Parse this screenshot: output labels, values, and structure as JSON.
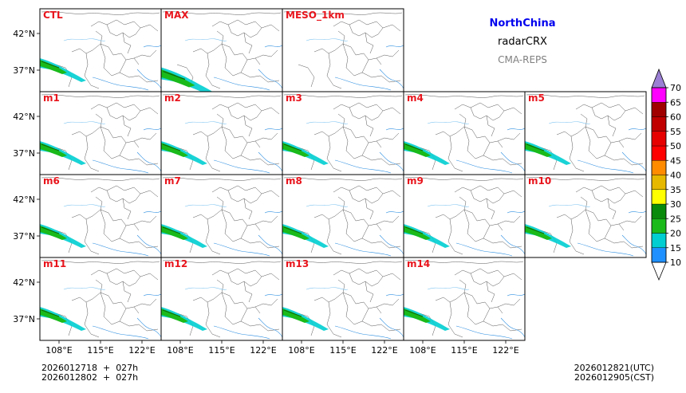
{
  "header": {
    "region": "NorthChina",
    "product": "radarCRX",
    "model": "CMA-REPS"
  },
  "footer": {
    "init_utc": "2026012718  +  027h",
    "init_cst": "2026012802  +  027h",
    "valid_utc": "2026012821(UTC)",
    "valid_cst": "2026012905(CST)"
  },
  "axes": {
    "lat_ticks": [
      "42°N",
      "37°N"
    ],
    "lon_ticks": [
      "108°E",
      "115°E",
      "122°E"
    ]
  },
  "panels": [
    {
      "label": "CTL",
      "row": 0,
      "col": 0
    },
    {
      "label": "MAX",
      "row": 0,
      "col": 1
    },
    {
      "label": "MESO_1km",
      "row": 0,
      "col": 2
    },
    {
      "label": "m1",
      "row": 1,
      "col": 0
    },
    {
      "label": "m2",
      "row": 1,
      "col": 1
    },
    {
      "label": "m3",
      "row": 1,
      "col": 2
    },
    {
      "label": "m4",
      "row": 1,
      "col": 3
    },
    {
      "label": "m5",
      "row": 1,
      "col": 4
    },
    {
      "label": "m6",
      "row": 2,
      "col": 0
    },
    {
      "label": "m7",
      "row": 2,
      "col": 1
    },
    {
      "label": "m8",
      "row": 2,
      "col": 2
    },
    {
      "label": "m9",
      "row": 2,
      "col": 3
    },
    {
      "label": "m10",
      "row": 2,
      "col": 4
    },
    {
      "label": "m11",
      "row": 3,
      "col": 0
    },
    {
      "label": "m12",
      "row": 3,
      "col": 1
    },
    {
      "label": "m13",
      "row": 3,
      "col": 2
    },
    {
      "label": "m14",
      "row": 3,
      "col": 3
    }
  ],
  "colorbar": {
    "levels": [
      "10",
      "15",
      "20",
      "25",
      "30",
      "35",
      "40",
      "45",
      "50",
      "55",
      "60",
      "65",
      "70"
    ],
    "colors": [
      "#1e90ff",
      "#00ced1",
      "#1aba1a",
      "#0a8a0a",
      "#ffff00",
      "#e6b800",
      "#ff8c00",
      "#ff0000",
      "#e60000",
      "#c00000",
      "#a00000",
      "#ff00ff",
      "#9900cc",
      "#9b7fd4"
    ],
    "under_color": "#ffffff",
    "over_color": "#9b7fd4"
  },
  "colors": {
    "panel_label": "#e8141c",
    "region_title": "#0000ee",
    "model_title": "#808080",
    "border_gray": "#555555",
    "river_blue": "#2a8de0"
  }
}
